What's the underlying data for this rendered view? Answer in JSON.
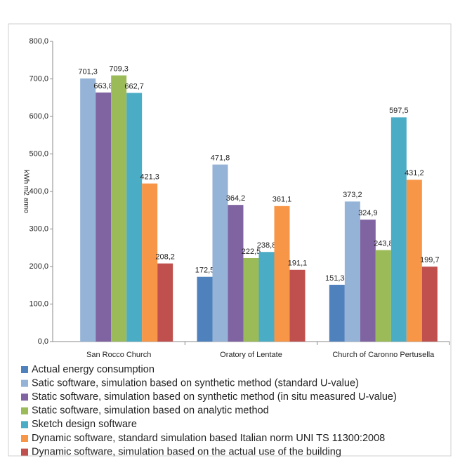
{
  "chart_data": {
    "type": "bar",
    "ylabel": "kWh m2 anno",
    "categories": [
      "San Rocco Church",
      "Oratory of Lentate",
      "Church of Caronno Pertusella"
    ],
    "ylim": [
      0,
      800
    ],
    "yticks": [
      {
        "value": 0,
        "label": "0,0"
      },
      {
        "value": 100,
        "label": "100,0"
      },
      {
        "value": 200,
        "label": "200,0"
      },
      {
        "value": 300,
        "label": "300,0"
      },
      {
        "value": 400,
        "label": "400,0"
      },
      {
        "value": 500,
        "label": "500,0"
      },
      {
        "value": 600,
        "label": "600,0"
      },
      {
        "value": 700,
        "label": "700,0"
      },
      {
        "value": 800,
        "label": "800,0"
      }
    ],
    "series": [
      {
        "name": "Actual energy consumption",
        "color": "#4f81bd",
        "values": [
          null,
          172.5,
          151.34
        ],
        "value_labels": [
          null,
          "172,5",
          "151,34"
        ]
      },
      {
        "name": "Satic software, simulation based on synthetic method (standard U-value)",
        "color": "#95b3d7",
        "values": [
          701.3,
          471.8,
          373.2
        ],
        "value_labels": [
          "701,3",
          "471,8",
          "373,2"
        ]
      },
      {
        "name": "Static software, simulation based on synthetic method (in situ measured U-value)",
        "color": "#8064a2",
        "values": [
          663.8,
          364.2,
          324.9
        ],
        "value_labels": [
          "663,8",
          "364,2",
          "324,9"
        ]
      },
      {
        "name": "Static software, simulation based on analytic method",
        "color": "#9bbb59",
        "values": [
          709.3,
          222.5,
          243.8
        ],
        "value_labels": [
          "709,3",
          "222,5",
          "243,8"
        ]
      },
      {
        "name": "Sketch design software",
        "color": "#4bacc6",
        "values": [
          662.7,
          238.8,
          597.5
        ],
        "value_labels": [
          "662,7",
          "238,8",
          "597,5"
        ]
      },
      {
        "name": "Dynamic software, standard simulation based Italian norm UNI TS 11300:2008",
        "color": "#f79646",
        "values": [
          421.3,
          361.1,
          431.2
        ],
        "value_labels": [
          "421,3",
          "361,1",
          "431,2"
        ]
      },
      {
        "name": "Dynamic software, simulation based on the actual use of the building",
        "color": "#c0504d",
        "values": [
          208.2,
          191.1,
          199.7
        ],
        "value_labels": [
          "208,2",
          "191,1",
          "199,7"
        ]
      }
    ]
  }
}
